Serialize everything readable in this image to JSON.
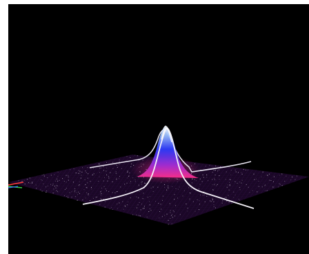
{
  "scene": {
    "description_hidden": "",
    "colors": {
      "background": "#000000",
      "plane_fill": "#1a0726",
      "plane_grid": "#3a1452",
      "peak_top": "#ffffff",
      "peak_high": "#6aa0ff",
      "peak_mid": "#2f3cff",
      "peak_base": "#ff2f8a",
      "contour_line": "#e8e4f0",
      "noise_dots": "#cfc6d8",
      "axis_red": "#ff3b3b",
      "axis_green": "#37d04a",
      "axis_blue": "#3b6bff"
    },
    "icons": [
      "axis-gizmo-icon"
    ]
  }
}
